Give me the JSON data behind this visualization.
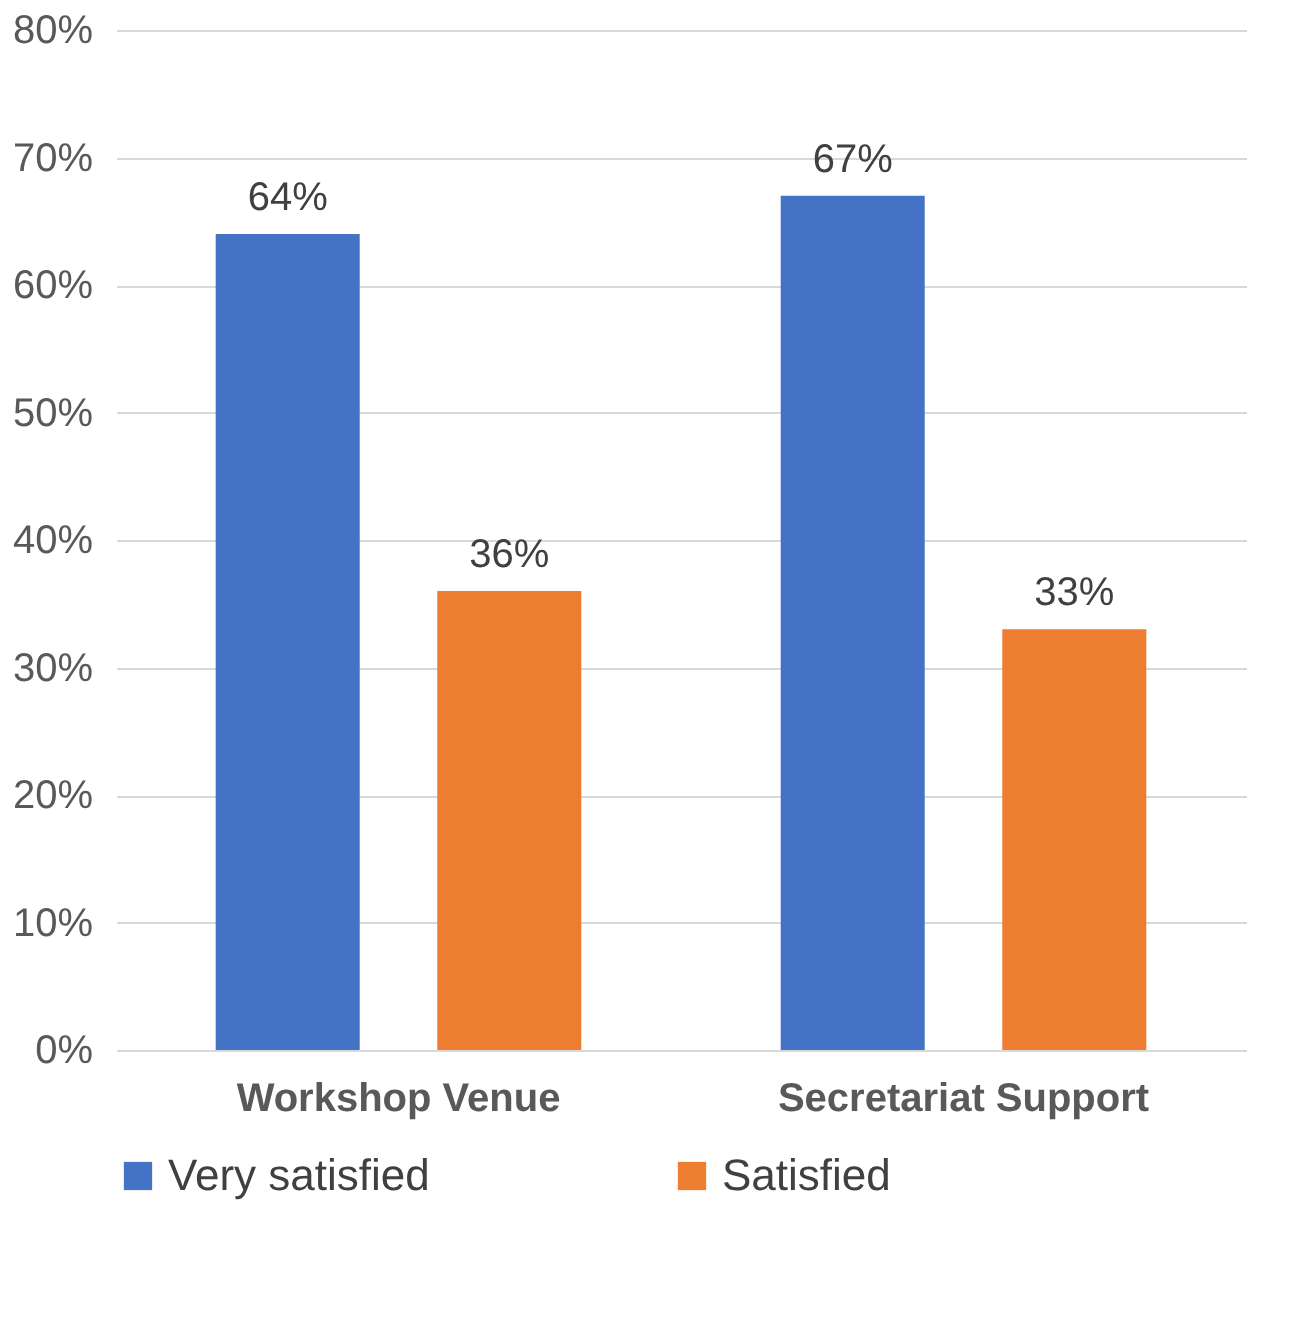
{
  "chart_data": {
    "type": "bar",
    "categories": [
      "Workshop Venue",
      "Secretariat Support"
    ],
    "series": [
      {
        "name": "Very satisfied",
        "color": "#4472c4",
        "values": [
          64,
          67
        ],
        "value_labels": [
          "64%",
          "67%"
        ]
      },
      {
        "name": "Satisfied",
        "color": "#ed7d31",
        "values": [
          36,
          33
        ],
        "value_labels": [
          "36%",
          "33%"
        ]
      }
    ],
    "ylim": [
      0,
      80
    ],
    "yticks": [
      {
        "value": 0,
        "label": "0%"
      },
      {
        "value": 10,
        "label": "10%"
      },
      {
        "value": 20,
        "label": "20%"
      },
      {
        "value": 30,
        "label": "30%"
      },
      {
        "value": 40,
        "label": "40%"
      },
      {
        "value": 50,
        "label": "50%"
      },
      {
        "value": 60,
        "label": "60%"
      },
      {
        "value": 70,
        "label": "70%"
      },
      {
        "value": 80,
        "label": "80%"
      }
    ],
    "grid": "y",
    "legend": "bottom"
  }
}
